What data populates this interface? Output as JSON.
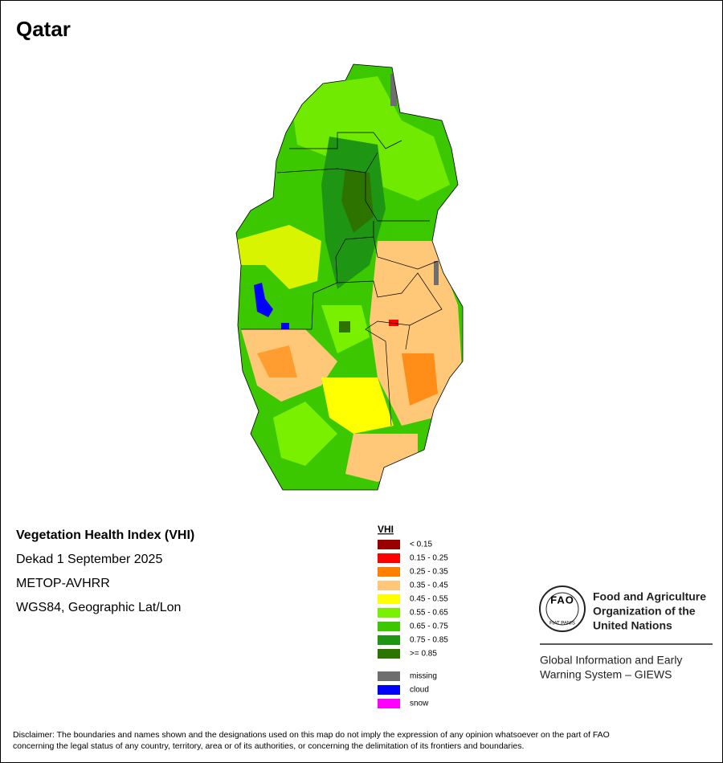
{
  "title": "Qatar",
  "info": [
    "Vegetation Health Index (VHI)",
    "Dekad 1 September 2025",
    "METOP-AVHRR",
    "WGS84, Geographic Lat/Lon"
  ],
  "legend": {
    "title": "VHI",
    "classes": [
      {
        "label": "< 0.15",
        "color": "#990000"
      },
      {
        "label": "0.15 - 0.25",
        "color": "#ff0000"
      },
      {
        "label": "0.25 - 0.35",
        "color": "#ff8000"
      },
      {
        "label": "0.35 - 0.45",
        "color": "#ffc878"
      },
      {
        "label": "0.45 - 0.55",
        "color": "#ffff00"
      },
      {
        "label": "0.55 - 0.65",
        "color": "#78f000"
      },
      {
        "label": "0.65 - 0.75",
        "color": "#3cc800"
      },
      {
        "label": "0.75 - 0.85",
        "color": "#1e9614"
      },
      {
        "label": ">= 0.85",
        "color": "#2d7300"
      }
    ],
    "other": [
      {
        "label": "missing",
        "color": "#6e6e6e"
      },
      {
        "label": "cloud",
        "color": "#0000ff"
      },
      {
        "label": "snow",
        "color": "#ff00ff"
      }
    ]
  },
  "logo": {
    "letters": "FAO",
    "motto": "FIAT PANIS",
    "org_name": [
      "Food and Agriculture",
      "Organization of the",
      "United Nations"
    ],
    "system": [
      "Global Information and Early",
      "Warning System – GIEWS"
    ]
  },
  "disclaimer": [
    "Disclaimer: The boundaries and names shown and the designations used on this map do not imply the expression of any opinion whatsoever on the part of FAO",
    "concerning the legal status of any country, territory, area or of its authorities, or concerning the delimitation of its frontiers and boundaries."
  ]
}
